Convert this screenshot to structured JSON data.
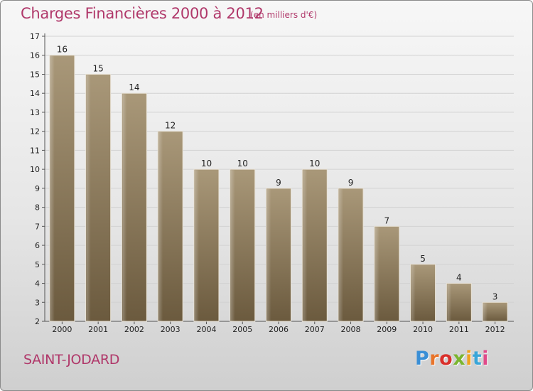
{
  "header": {
    "title": "Charges Financières 2000 à 2012",
    "subtitle": "(en milliers d'€)"
  },
  "footer": {
    "commune": "SAINT-JODARD",
    "logo": "Proxiti",
    "logo_colors": [
      "#3a8fd6",
      "#e8742a",
      "#d9302b",
      "#7ab52f",
      "#f0a21e",
      "#3aa6d8",
      "#e04a8a"
    ]
  },
  "colors": {
    "bar_light": "#a99879",
    "bar_dark": "#6b5a3e",
    "accent": "#b0386a",
    "grid": "#d2d2d2"
  },
  "chart_data": {
    "type": "bar",
    "title": "Charges Financières 2000 à 2012",
    "subtitle": "(en milliers d'€)",
    "categories": [
      "2000",
      "2001",
      "2002",
      "2003",
      "2004",
      "2005",
      "2006",
      "2007",
      "2008",
      "2009",
      "2010",
      "2011",
      "2012"
    ],
    "values": [
      16,
      15,
      14,
      12,
      10,
      10,
      9,
      10,
      9,
      7,
      5,
      4,
      3
    ],
    "ylim": [
      2,
      17
    ],
    "yticks": [
      2,
      3,
      4,
      5,
      6,
      7,
      8,
      9,
      10,
      11,
      12,
      13,
      14,
      15,
      16,
      17
    ],
    "grid": true,
    "legend": "none",
    "data_labels": true
  }
}
